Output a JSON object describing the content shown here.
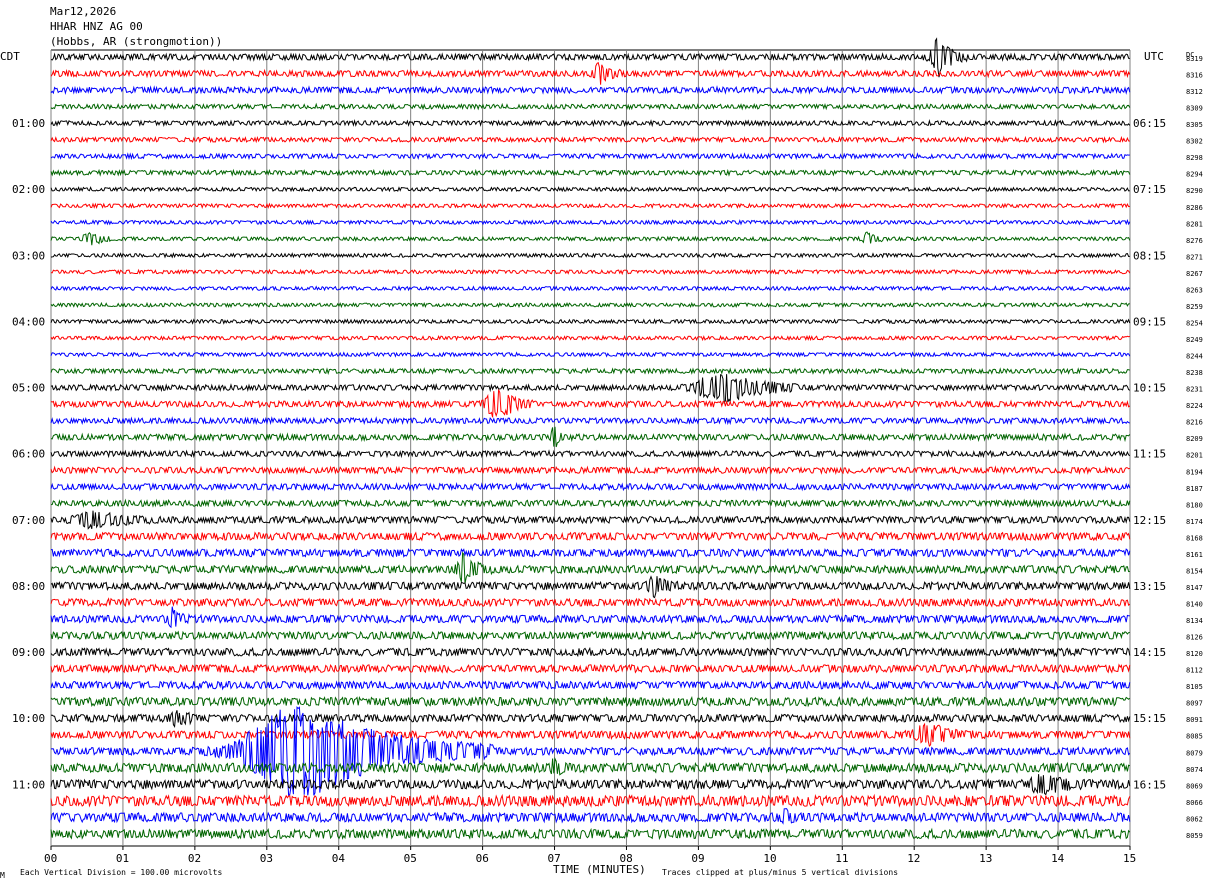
{
  "header": {
    "date": "Mar12,2026",
    "station": "HHAR HNZ AG 00",
    "location": "(Hobbs, AR (strongmotion))"
  },
  "left_timezone": "CDT",
  "right_timezone": "UTC",
  "dc_label": "DC",
  "footer": {
    "scale_note": "Each Vertical Division =  100.00 microvolts",
    "clip_note": "Traces clipped at plus/minus 5 vertical divisions",
    "corner_mark": "M"
  },
  "colors": {
    "trace_cycle": [
      "#000000",
      "#ff0000",
      "#0000ff",
      "#006400"
    ],
    "grid": "#808080",
    "background": "#ffffff"
  },
  "chart_data": {
    "type": "line",
    "xlabel": "TIME (MINUTES)",
    "xlim": [
      0,
      15
    ],
    "x_ticks": [
      "00",
      "01",
      "02",
      "03",
      "04",
      "05",
      "06",
      "07",
      "08",
      "09",
      "10",
      "11",
      "12",
      "13",
      "14",
      "15"
    ],
    "left_time_labels": [
      {
        "row": 4,
        "label": "01:00"
      },
      {
        "row": 8,
        "label": "02:00"
      },
      {
        "row": 12,
        "label": "03:00"
      },
      {
        "row": 16,
        "label": "04:00"
      },
      {
        "row": 20,
        "label": "05:00"
      },
      {
        "row": 24,
        "label": "06:00"
      },
      {
        "row": 28,
        "label": "07:00"
      },
      {
        "row": 32,
        "label": "08:00"
      },
      {
        "row": 36,
        "label": "09:00"
      },
      {
        "row": 40,
        "label": "10:00"
      },
      {
        "row": 44,
        "label": "11:00"
      }
    ],
    "right_time_labels": [
      {
        "row": 4,
        "label": "06:15"
      },
      {
        "row": 8,
        "label": "07:15"
      },
      {
        "row": 12,
        "label": "08:15"
      },
      {
        "row": 16,
        "label": "09:15"
      },
      {
        "row": 20,
        "label": "10:15"
      },
      {
        "row": 24,
        "label": "11:15"
      },
      {
        "row": 28,
        "label": "12:15"
      },
      {
        "row": 32,
        "label": "13:15"
      },
      {
        "row": 36,
        "label": "14:15"
      },
      {
        "row": 40,
        "label": "15:15"
      },
      {
        "row": 44,
        "label": "16:15"
      }
    ],
    "dc_offsets": [
      8319,
      8316,
      8312,
      8309,
      8305,
      8302,
      8298,
      8294,
      8290,
      8286,
      8281,
      8276,
      8271,
      8267,
      8263,
      8259,
      8254,
      8249,
      8244,
      8238,
      8231,
      8224,
      8216,
      8209,
      8201,
      8194,
      8187,
      8180,
      8174,
      8168,
      8161,
      8154,
      8147,
      8140,
      8134,
      8126,
      8120,
      8112,
      8105,
      8097,
      8091,
      8085,
      8079,
      8074,
      8069,
      8066,
      8062,
      8059
    ],
    "noise_level": [
      2,
      2,
      2,
      1.5,
      1.5,
      1.5,
      1.5,
      1.5,
      1.2,
      1.2,
      1.2,
      1.2,
      1.2,
      1.2,
      1.2,
      1.2,
      1.2,
      1.2,
      1.2,
      1.5,
      1.8,
      2,
      1.8,
      2,
      1.8,
      2,
      2,
      2,
      2.2,
      2.5,
      2.5,
      2.5,
      2.5,
      2.5,
      2.5,
      2.5,
      2.5,
      2.5,
      2.5,
      2.8,
      2.5,
      2.5,
      2.5,
      3,
      3,
      3.5,
      3,
      3
    ],
    "events": [
      {
        "row": 0,
        "time_min": 12.35,
        "amp_div": 2,
        "duration_min": 0.35
      },
      {
        "row": 1,
        "time_min": 7.65,
        "amp_div": 1.2,
        "duration_min": 0.3
      },
      {
        "row": 11,
        "time_min": 0.55,
        "amp_div": 0.8,
        "duration_min": 0.3
      },
      {
        "row": 11,
        "time_min": 11.35,
        "amp_div": 0.6,
        "duration_min": 0.25
      },
      {
        "row": 20,
        "time_min": 9.3,
        "amp_div": 1.8,
        "duration_min": 1.0
      },
      {
        "row": 21,
        "time_min": 6.2,
        "amp_div": 1.8,
        "duration_min": 0.45
      },
      {
        "row": 23,
        "time_min": 7.0,
        "amp_div": 1.2,
        "duration_min": 0.15
      },
      {
        "row": 28,
        "time_min": 0.6,
        "amp_div": 0.8,
        "duration_min": 0.8
      },
      {
        "row": 31,
        "time_min": 5.75,
        "amp_div": 1.5,
        "duration_min": 0.35
      },
      {
        "row": 32,
        "time_min": 8.4,
        "amp_div": 1.2,
        "duration_min": 0.3
      },
      {
        "row": 34,
        "time_min": 1.7,
        "amp_div": 1.0,
        "duration_min": 0.2
      },
      {
        "row": 40,
        "time_min": 1.75,
        "amp_div": 0.8,
        "duration_min": 0.3
      },
      {
        "row": 41,
        "time_min": 12.2,
        "amp_div": 1.0,
        "duration_min": 0.6
      },
      {
        "row": 42,
        "time_min": 3.5,
        "amp_div": 5,
        "duration_min": 2.4,
        "clipped": true
      },
      {
        "row": 43,
        "time_min": 7.0,
        "amp_div": 0.8,
        "duration_min": 0.2
      },
      {
        "row": 44,
        "time_min": 13.8,
        "amp_div": 0.8,
        "duration_min": 0.6
      },
      {
        "row": 46,
        "time_min": 10.2,
        "amp_div": 0.8,
        "duration_min": 0.15
      }
    ],
    "grid": true
  }
}
